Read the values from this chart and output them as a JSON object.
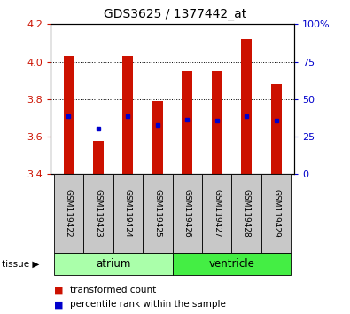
{
  "title": "GDS3625 / 1377442_at",
  "samples": [
    "GSM119422",
    "GSM119423",
    "GSM119424",
    "GSM119425",
    "GSM119426",
    "GSM119427",
    "GSM119428",
    "GSM119429"
  ],
  "bar_tops": [
    4.03,
    3.575,
    4.03,
    3.79,
    3.95,
    3.95,
    4.12,
    3.88
  ],
  "bar_base": 3.4,
  "blue_vals": [
    3.71,
    3.645,
    3.71,
    3.66,
    3.69,
    3.685,
    3.71,
    3.685
  ],
  "ylim": [
    3.4,
    4.2
  ],
  "yticks_left": [
    3.4,
    3.6,
    3.8,
    4.0,
    4.2
  ],
  "yticks_right": [
    0,
    25,
    50,
    75,
    100
  ],
  "ytick_right_labels": [
    "0",
    "25",
    "50",
    "75",
    "100%"
  ],
  "groups": [
    {
      "label": "atrium",
      "samples": [
        0,
        1,
        2,
        3
      ],
      "color": "#aaffaa"
    },
    {
      "label": "ventricle",
      "samples": [
        4,
        5,
        6,
        7
      ],
      "color": "#44ee44"
    }
  ],
  "bar_color": "#cc1100",
  "blue_color": "#0000cc",
  "bar_width": 0.35,
  "plot_bg": "#ffffff",
  "left_tick_color": "#cc1100",
  "right_tick_color": "#0000cc",
  "legend_items": [
    "transformed count",
    "percentile rank within the sample"
  ]
}
